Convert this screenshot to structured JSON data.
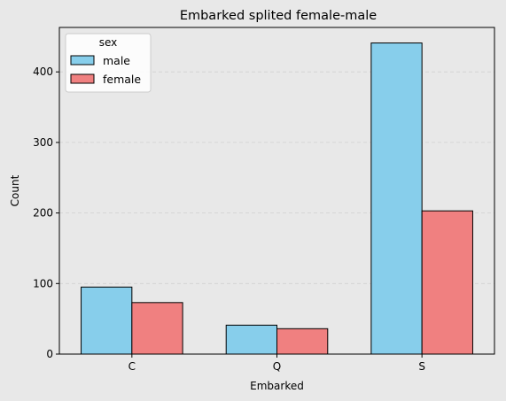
{
  "chart_data": {
    "type": "bar",
    "title": "Embarked splited female-male",
    "xlabel": "Embarked",
    "ylabel": "Count",
    "categories": [
      "C",
      "Q",
      "S"
    ],
    "series": [
      {
        "name": "male",
        "values": [
          95,
          41,
          441
        ],
        "color": "#87ceeb"
      },
      {
        "name": "female",
        "values": [
          73,
          36,
          203
        ],
        "color": "#f08080"
      }
    ],
    "ylim": [
      0,
      463
    ],
    "yticks": [
      0,
      100,
      200,
      300,
      400
    ],
    "grid": "y-dashed",
    "legend": {
      "title": "sex",
      "placement": "top-left"
    },
    "background": "#e8e8e8",
    "plot_background": "#e8e8e8"
  }
}
